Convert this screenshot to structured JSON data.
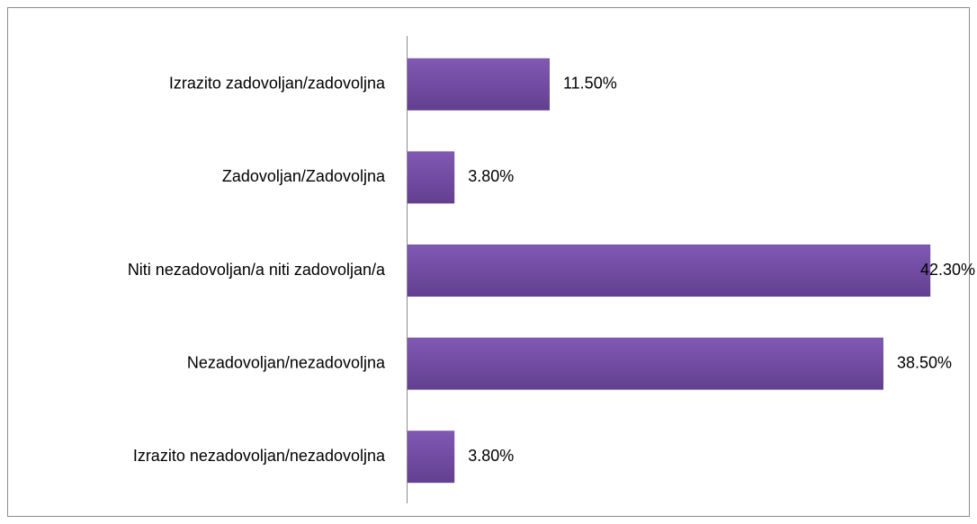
{
  "chart_data": {
    "type": "bar",
    "orientation": "horizontal",
    "categories": [
      "Izrazito zadovoljan/zadovoljna",
      "Zadovoljan/Zadovoljna",
      "Niti nezadovoljan/a niti zadovoljan/a",
      "Nezadovoljan/nezadovoljna",
      "Izrazito nezadovoljan/nezadovoljna"
    ],
    "values": [
      11.5,
      3.8,
      42.3,
      38.5,
      3.8
    ],
    "value_labels": [
      "11.50%",
      "3.80%",
      "42.30%",
      "38.50%",
      "3.80%"
    ],
    "color": "#7450a3"
  }
}
